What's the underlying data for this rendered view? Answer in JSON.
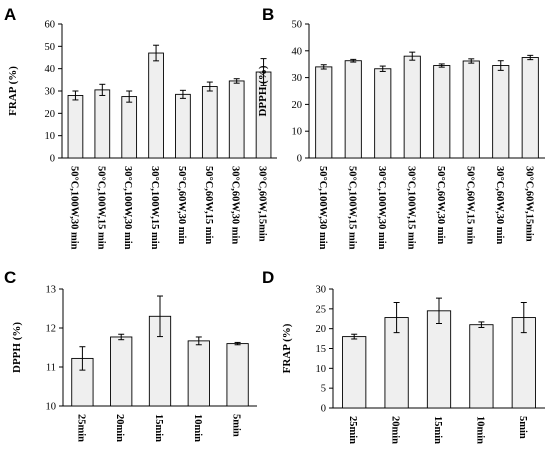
{
  "chart_data": [
    {
      "panel_label": "A",
      "type": "bar",
      "ylabel": "FRAP (%)",
      "ylim": [
        0,
        60
      ],
      "yticks": [
        0,
        10,
        20,
        30,
        40,
        50,
        60
      ],
      "categories": [
        "50°C,100W,30 min",
        "50°C,100W,15 min",
        "30°C,100W,30 min",
        "30°C,100W,15 min",
        "50°C,60W,30 min",
        "50°C,60W,15 min",
        "30°C,60W,30 min",
        "30°C,60W,15min"
      ],
      "values": [
        28,
        30.5,
        27.5,
        47,
        28.5,
        32,
        34.5,
        38.5
      ],
      "errors": [
        2,
        2.5,
        2.5,
        3.5,
        1.8,
        2,
        1,
        6
      ],
      "bar_color": "#efefef",
      "grid": false
    },
    {
      "panel_label": "B",
      "type": "bar",
      "ylabel": "DPPH (%)",
      "ylim": [
        0,
        50
      ],
      "yticks": [
        0,
        10,
        20,
        30,
        40,
        50
      ],
      "categories": [
        "50°C,100W,30 min",
        "50°C,100W,15 min",
        "30°C,100W,30 min",
        "30°C,100W,15 min",
        "50°C,60W,30 min",
        "50°C,60W,15 min",
        "30°C,60W,30 min",
        "30°C,60W,15min"
      ],
      "values": [
        34,
        36.3,
        33.3,
        38,
        34.5,
        36.2,
        34.5,
        37.5
      ],
      "errors": [
        0.8,
        0.5,
        1,
        1.5,
        0.6,
        0.8,
        1.8,
        0.8
      ],
      "bar_color": "#efefef",
      "grid": false
    },
    {
      "panel_label": "C",
      "type": "bar",
      "ylabel": "DPPH (%)",
      "ylim": [
        10,
        13
      ],
      "yticks": [
        10,
        11,
        12,
        13
      ],
      "categories": [
        "25min",
        "20min",
        "15min",
        "10min",
        "5min"
      ],
      "values": [
        11.22,
        11.77,
        12.3,
        11.67,
        11.6
      ],
      "errors": [
        0.3,
        0.07,
        0.52,
        0.1,
        0.03
      ],
      "bar_color": "#efefef",
      "grid": false
    },
    {
      "panel_label": "D",
      "type": "bar",
      "ylabel": "FRAP (%)",
      "ylim": [
        0,
        30
      ],
      "yticks": [
        0,
        5,
        10,
        15,
        20,
        25,
        30
      ],
      "categories": [
        "25min",
        "20min",
        "15min",
        "10min",
        "5min"
      ],
      "values": [
        18,
        22.8,
        24.5,
        21,
        22.8
      ],
      "errors": [
        0.6,
        3.8,
        3.2,
        0.7,
        3.8
      ],
      "bar_color": "#efefef",
      "grid": false
    }
  ]
}
